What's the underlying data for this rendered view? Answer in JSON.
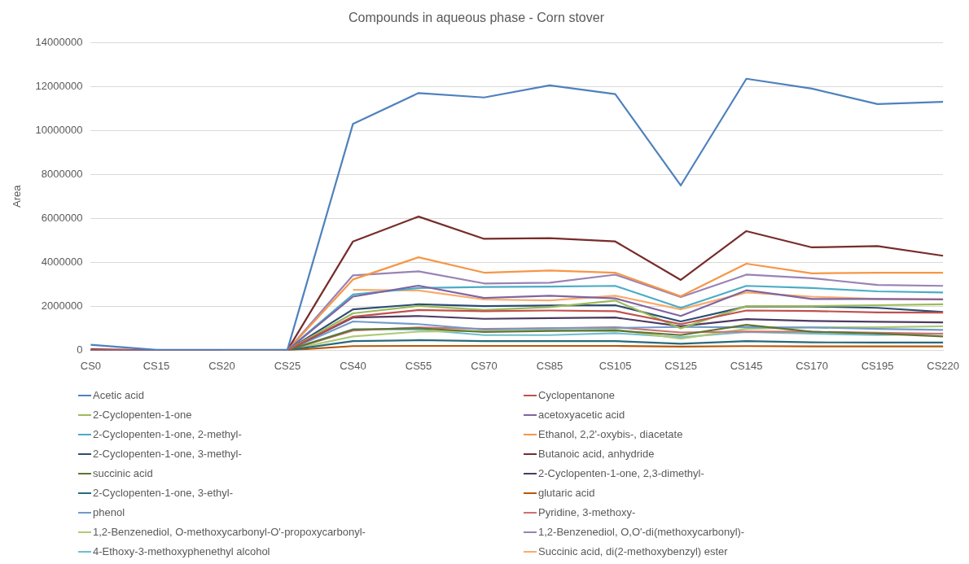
{
  "chart_data": {
    "type": "line",
    "title": "Compounds in aqueous phase - Corn stover",
    "ylabel": "Area",
    "categories": [
      "CS0",
      "CS15",
      "CS20",
      "CS25",
      "CS40",
      "CS55",
      "CS70",
      "CS85",
      "CS105",
      "CS125",
      "CS145",
      "CS170",
      "CS195",
      "CS220"
    ],
    "ylim": [
      0,
      14000000
    ],
    "yticks": [
      0,
      2000000,
      4000000,
      6000000,
      8000000,
      10000000,
      12000000,
      14000000
    ],
    "grid": "y",
    "legend": "bottom",
    "marker": "none",
    "line_style": "solid",
    "series": [
      {
        "name": "Acetic acid",
        "color": "#4f81bd",
        "values": [
          250000,
          20000,
          20000,
          20000,
          10300000,
          11700000,
          11500000,
          12050000,
          11650000,
          7500000,
          12350000,
          11900000,
          11200000,
          11300000
        ]
      },
      {
        "name": "Cyclopentanone",
        "color": "#c0504d",
        "values": [
          0,
          0,
          0,
          0,
          1530000,
          1830000,
          1780000,
          1810000,
          1780000,
          1190000,
          1810000,
          1790000,
          1720000,
          1710000
        ]
      },
      {
        "name": "2-Cyclopenten-1-one",
        "color": "#9bbb59",
        "values": [
          null,
          null,
          0,
          0,
          1680000,
          2020000,
          1830000,
          1960000,
          2260000,
          1000000,
          2010000,
          2010000,
          2050000,
          2090000
        ]
      },
      {
        "name": "acetoxyacetic acid",
        "color": "#8064a2",
        "values": [
          0,
          0,
          0,
          0,
          2440000,
          2940000,
          2380000,
          2480000,
          2360000,
          1560000,
          2730000,
          2330000,
          2330000,
          2310000
        ]
      },
      {
        "name": "2-Cyclopenten-1-one, 2-methyl-",
        "color": "#4bacc6",
        "values": [
          0,
          0,
          0,
          0,
          2540000,
          2830000,
          2880000,
          2900000,
          2930000,
          1930000,
          2930000,
          2830000,
          2680000,
          2630000
        ]
      },
      {
        "name": "Ethanol, 2,2'-oxybis-, diacetate",
        "color": "#f79646",
        "values": [
          null,
          null,
          0,
          0,
          3220000,
          4230000,
          3530000,
          3630000,
          3530000,
          2460000,
          3940000,
          3500000,
          3530000,
          3530000
        ]
      },
      {
        "name": "2-Cyclopenten-1-one, 3-methyl-",
        "color": "#2c4d75",
        "values": [
          0,
          0,
          0,
          0,
          1860000,
          2090000,
          2010000,
          2040000,
          2050000,
          1310000,
          1990000,
          1990000,
          1930000,
          1740000
        ]
      },
      {
        "name": "Butanoic acid, anhydride",
        "color": "#772c2a",
        "values": [
          50000,
          0,
          0,
          0,
          4950000,
          6080000,
          5070000,
          5100000,
          4950000,
          3200000,
          5420000,
          4680000,
          4740000,
          4300000
        ]
      },
      {
        "name": "succinic acid",
        "color": "#5f7530",
        "values": [
          0,
          0,
          0,
          0,
          940000,
          1000000,
          830000,
          880000,
          900000,
          690000,
          1160000,
          840000,
          760000,
          630000
        ]
      },
      {
        "name": "2-Cyclopenten-1-one, 2,3-dimethyl-",
        "color": "#4d3b62",
        "values": [
          0,
          0,
          0,
          0,
          1490000,
          1560000,
          1430000,
          1460000,
          1490000,
          1090000,
          1420000,
          1330000,
          1300000,
          1270000
        ]
      },
      {
        "name": "2-Cyclopenten-1-one, 3-ethyl-",
        "color": "#276a7c",
        "values": [
          0,
          0,
          0,
          0,
          420000,
          460000,
          420000,
          420000,
          420000,
          300000,
          420000,
          360000,
          350000,
          350000
        ]
      },
      {
        "name": "glutaric acid",
        "color": "#b65708",
        "values": [
          0,
          0,
          0,
          0,
          190000,
          200000,
          200000,
          200000,
          200000,
          170000,
          190000,
          180000,
          180000,
          180000
        ]
      },
      {
        "name": "phenol",
        "color": "#729aca",
        "values": [
          0,
          0,
          0,
          0,
          1310000,
          1190000,
          940000,
          1000000,
          1020000,
          1060000,
          1050000,
          1040000,
          970000,
          930000
        ]
      },
      {
        "name": "Pyridine, 3-methoxy-",
        "color": "#cd7371",
        "values": [
          0,
          0,
          0,
          0,
          900000,
          1040000,
          970000,
          1000000,
          1050000,
          810000,
          850000,
          840000,
          800000,
          750000
        ]
      },
      {
        "name": "1,2-Benzenediol, O-methoxycarbonyl-O'-propoxycarbonyl-",
        "color": "#afc97a",
        "values": [
          null,
          null,
          0,
          0,
          630000,
          850000,
          880000,
          900000,
          940000,
          530000,
          970000,
          1050000,
          1050000,
          1090000
        ]
      },
      {
        "name": "1,2-Benzenediol, O,O'-di(methoxycarbonyl)-",
        "color": "#9983b5",
        "values": [
          0,
          0,
          0,
          0,
          3410000,
          3590000,
          3040000,
          3070000,
          3440000,
          2420000,
          3440000,
          3280000,
          2970000,
          2930000
        ]
      },
      {
        "name": "4-Ethoxy-3-methoxyphenethyl alcohol",
        "color": "#6fbdd1",
        "values": [
          0,
          0,
          0,
          0,
          960000,
          940000,
          690000,
          690000,
          780000,
          590000,
          830000,
          760000,
          690000,
          760000
        ]
      },
      {
        "name": "Succinic acid, di(2-methoxybenzyl) ester",
        "color": "#f9ab6b",
        "values": [
          null,
          null,
          null,
          null,
          2750000,
          2720000,
          2310000,
          2270000,
          2480000,
          1860000,
          2630000,
          2440000,
          2330000,
          2330000
        ]
      }
    ]
  }
}
